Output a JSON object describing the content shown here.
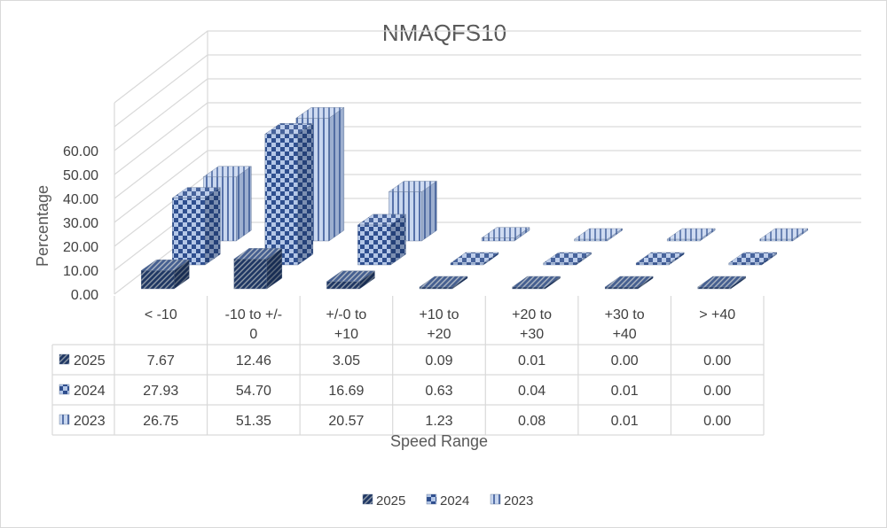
{
  "chart_data": {
    "type": "bar",
    "subtype": "3d-column",
    "title": "NMAQFS10",
    "xlabel": "Speed Range",
    "ylabel": "Percentage",
    "ylim": [
      0,
      60
    ],
    "yticks": [
      "0.00",
      "10.00",
      "20.00",
      "30.00",
      "40.00",
      "50.00",
      "60.00"
    ],
    "categories": [
      "< -10",
      "-10 to +/-0",
      "+/-0 to +10",
      "+10 to +20",
      "+20 to +30",
      "+30 to +40",
      "> +40"
    ],
    "category_lines": [
      [
        "< -10"
      ],
      [
        "-10 to +/-",
        "0"
      ],
      [
        "+/-0 to",
        "+10"
      ],
      [
        "+10 to",
        "+20"
      ],
      [
        "+20 to",
        "+30"
      ],
      [
        "+30 to",
        "+40"
      ],
      [
        "> +40"
      ]
    ],
    "series": [
      {
        "name": "2025",
        "values": [
          7.67,
          12.46,
          3.05,
          0.09,
          0.01,
          0.0,
          0.0
        ],
        "labels": [
          "7.67",
          "12.46",
          "3.05",
          "0.09",
          "0.01",
          "0.00",
          "0.00"
        ],
        "color": "#203864",
        "pattern": "diagonal"
      },
      {
        "name": "2024",
        "values": [
          27.93,
          54.7,
          16.69,
          0.63,
          0.04,
          0.01,
          0.0
        ],
        "labels": [
          "27.93",
          "54.70",
          "16.69",
          "0.63",
          "0.04",
          "0.01",
          "0.00"
        ],
        "color": "#4472c4",
        "pattern": "checker"
      },
      {
        "name": "2023",
        "values": [
          26.75,
          51.35,
          20.57,
          1.23,
          0.08,
          0.01,
          0.0
        ],
        "labels": [
          "26.75",
          "51.35",
          "20.57",
          "1.23",
          "0.08",
          "0.01",
          "0.00"
        ],
        "color": "#b4c7e7",
        "pattern": "vertical"
      }
    ],
    "legend_position": "bottom",
    "data_table": true,
    "grid": true
  }
}
